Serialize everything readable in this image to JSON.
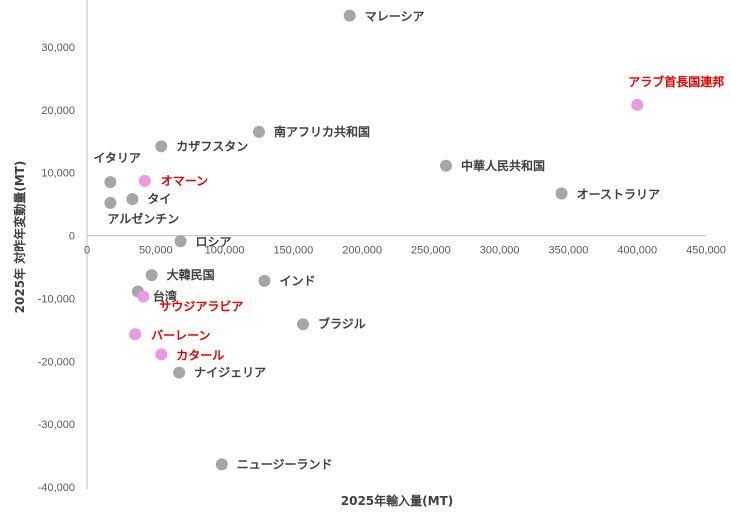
{
  "chart_data": {
    "type": "scatter",
    "xlabel": "2025年輸入量(MT)",
    "ylabel": "2025年 対昨年変動量(MT)",
    "xlim": [
      0,
      450000
    ],
    "ylim": [
      -40000,
      35000
    ],
    "x_ticks": [
      "0",
      "50,000",
      "100,000",
      "150,000",
      "200,000",
      "250,000",
      "300,000",
      "350,000",
      "400,000",
      "450,000"
    ],
    "y_ticks": [
      "30,000",
      "20,000",
      "10,000",
      "0",
      "-10,000",
      "-20,000",
      "-30,000",
      "-40,000"
    ],
    "grid": false,
    "colors": {
      "default": "#a6a6a6",
      "highlight": "#e89be0",
      "highlight_label": "#e60000",
      "default_label": "#404040"
    },
    "points": [
      {
        "label": "マレーシア",
        "x": 191000,
        "y": 35000,
        "highlight": false
      },
      {
        "label": "アラブ首長国連邦",
        "x": 400000,
        "y": 20800,
        "highlight": true
      },
      {
        "label": "南アフリカ共和国",
        "x": 125000,
        "y": 16500,
        "highlight": false
      },
      {
        "label": "カザフスタン",
        "x": 54000,
        "y": 14200,
        "highlight": false
      },
      {
        "label": "中華人民共和国",
        "x": 261000,
        "y": 11100,
        "highlight": false
      },
      {
        "label": "イタリア",
        "x": 17000,
        "y": 8500,
        "highlight": false
      },
      {
        "label": "オマーン",
        "x": 42000,
        "y": 8700,
        "highlight": true
      },
      {
        "label": "オーストラリア",
        "x": 345000,
        "y": 6700,
        "highlight": false
      },
      {
        "label": "タイ",
        "x": 33000,
        "y": 5800,
        "highlight": false
      },
      {
        "label": "アルゼンチン",
        "x": 17000,
        "y": 5200,
        "highlight": false
      },
      {
        "label": "ロシア",
        "x": 68000,
        "y": -900,
        "highlight": false
      },
      {
        "label": "大韓民国",
        "x": 47000,
        "y": -6300,
        "highlight": false
      },
      {
        "label": "インド",
        "x": 129000,
        "y": -7200,
        "highlight": false
      },
      {
        "label": "台湾",
        "x": 37000,
        "y": -8900,
        "highlight": false
      },
      {
        "label": "サウジアラビア",
        "x": 41000,
        "y": -9700,
        "highlight": true
      },
      {
        "label": "ブラジル",
        "x": 157000,
        "y": -14100,
        "highlight": false
      },
      {
        "label": "バーレーン",
        "x": 35000,
        "y": -15700,
        "highlight": true
      },
      {
        "label": "カタール",
        "x": 54000,
        "y": -18900,
        "highlight": true
      },
      {
        "label": "ナイジェリア",
        "x": 67000,
        "y": -21800,
        "highlight": false
      },
      {
        "label": "ニュージーランド",
        "x": 98000,
        "y": -36400,
        "highlight": false
      }
    ]
  }
}
